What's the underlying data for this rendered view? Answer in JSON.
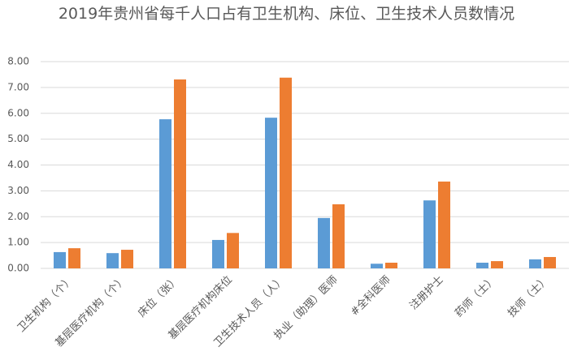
{
  "chart_data": {
    "type": "bar",
    "title": "2019年贵州省每千人口占有卫生机构、床位、卫生技术人员数情况",
    "categories": [
      "卫生机构（个）",
      "基层医疗机构（个）",
      "床位（张）",
      "基层医疗机构床位",
      "卫生技术人员（人）",
      "执业（助理）医师",
      "#全科医师",
      "注册护士",
      "药师（士）",
      "技师（士）"
    ],
    "series": [
      {
        "color": "#5b9bd5",
        "values": [
          0.63,
          0.59,
          5.77,
          1.1,
          5.83,
          1.95,
          0.18,
          2.63,
          0.22,
          0.35
        ]
      },
      {
        "color": "#ed7d31",
        "values": [
          0.78,
          0.72,
          7.31,
          1.37,
          7.38,
          2.48,
          0.22,
          3.36,
          0.28,
          0.44
        ]
      }
    ],
    "ylim": [
      0,
      8
    ],
    "yticks": [
      {
        "value": 0,
        "label": "0.00"
      },
      {
        "value": 1,
        "label": "1.00"
      },
      {
        "value": 2,
        "label": "2.00"
      },
      {
        "value": 3,
        "label": "3.00"
      },
      {
        "value": 4,
        "label": "4.00"
      },
      {
        "value": 5,
        "label": "5.00"
      },
      {
        "value": 6,
        "label": "6.00"
      },
      {
        "value": 7,
        "label": "7.00"
      },
      {
        "value": 8,
        "label": "8.00"
      }
    ],
    "grid": true
  }
}
